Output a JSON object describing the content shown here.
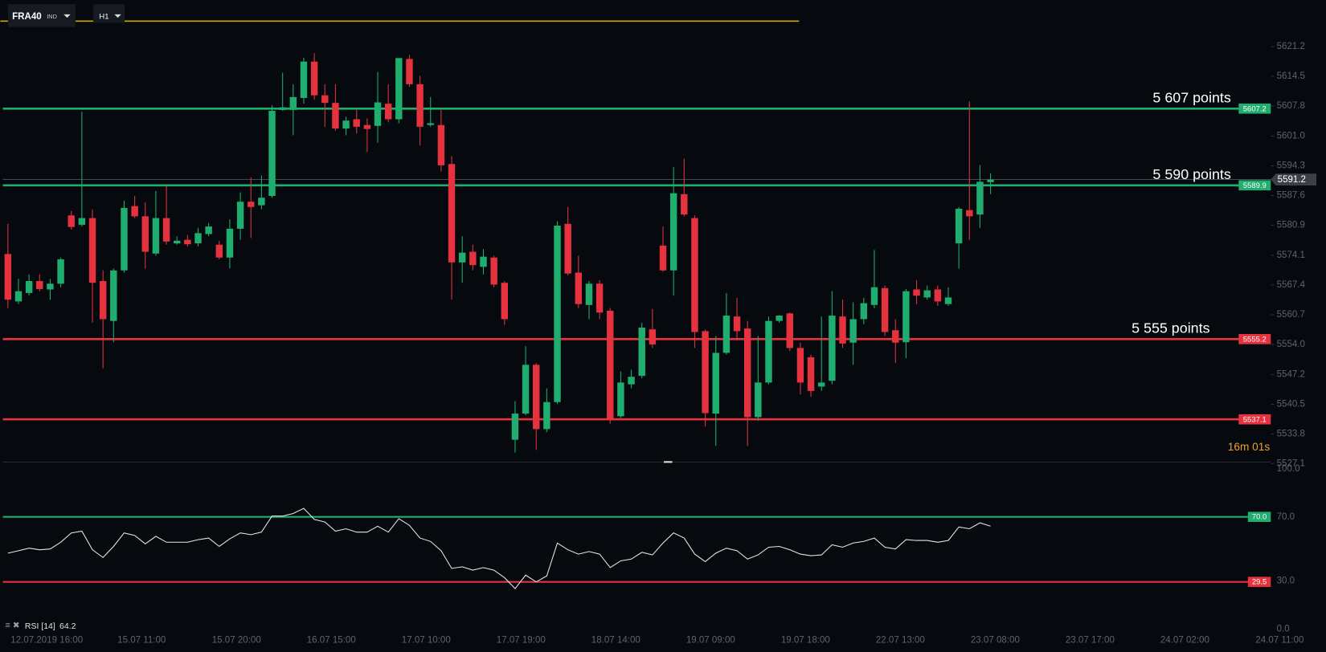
{
  "header": {
    "symbol": "FRA40",
    "market": "IND",
    "timeframe": "H1"
  },
  "chart_data": {
    "type": "candlestick",
    "up_color": "#1fae6f",
    "down_color": "#e5323e",
    "ylim": [
      5527.1,
      5631.7
    ],
    "yticks": [
      5621.2,
      5614.5,
      5607.8,
      {
        "value": 5601,
        "label": "5601.0"
      },
      5594.3,
      5587.6,
      5580.9,
      5574.1,
      5567.4,
      5560.7,
      {
        "value": 5554,
        "label": "5554.0"
      },
      5547.2,
      5540.5,
      5533.8,
      5527.1
    ],
    "open": [
      5574.4,
      5563.7,
      5565.6,
      5568.3,
      5566.4,
      5567.7,
      5583.1,
      5581.0,
      5582.5,
      5568.3,
      5559.3,
      5570.7,
      5585.2,
      5582.9,
      5574.5,
      5582.5,
      5576.8,
      5577.6,
      5576.8,
      5578.9,
      5576.5,
      5573.6,
      5580.1,
      5586.2,
      5585.4,
      5587.5,
      5606.9,
      5606.9,
      5609.6,
      5617.8,
      5610.2,
      5608.5,
      5602.7,
      5604.8,
      5603.5,
      5603.3,
      5608.3,
      5604.8,
      5618.4,
      5612.7,
      5603.5,
      5603.5,
      5594.7,
      5572.5,
      5574.9,
      5571.5,
      5573.6,
      5567.9,
      5532.5,
      5538.4,
      5549.4,
      5534.9,
      5541.0,
      5581.2,
      5570.2,
      5562.9,
      5567.7,
      5561.6,
      5537.8,
      5545.0,
      5546.9,
      5557.4,
      5576.3,
      5570.7,
      5587.9,
      5582.5,
      5557.0,
      5538.4,
      5552.1,
      5560.3,
      5557.6,
      5537.6,
      5545.4,
      5559.3,
      5561.0,
      5553.2,
      5551.1,
      5544.5,
      5545.8,
      5560.3,
      5554.4,
      5559.7,
      5562.9,
      5566.7,
      5557.2,
      5554.5,
      5566.4,
      5564.6,
      5566.4,
      5563.1,
      5576.8,
      5584.3,
      5583.3,
      5590.6
    ],
    "high": [
      5581.2,
      5568.8,
      5569.8,
      5569.8,
      5568.8,
      5573.6,
      5584.1,
      5606.5,
      5584.5,
      5570.7,
      5571.1,
      5586.4,
      5587.5,
      5586.0,
      5588.6,
      5589.8,
      5578.4,
      5578.7,
      5580.3,
      5581.4,
      5577.4,
      5582.2,
      5588.3,
      5591.7,
      5592.1,
      5607.9,
      5615.3,
      5612.7,
      5618.7,
      5619.7,
      5612.7,
      5612.7,
      5605.4,
      5606.9,
      5605.0,
      5615.5,
      5612.7,
      5618.6,
      5619.3,
      5614.6,
      5609.8,
      5606.9,
      5596.5,
      5578.4,
      5576.5,
      5575.5,
      5574.0,
      5568.3,
      5541.2,
      5553.6,
      5549.8,
      5544.1,
      5581.8,
      5585.0,
      5574.0,
      5568.3,
      5568.5,
      5562.2,
      5547.9,
      5548.3,
      5558.9,
      5562.0,
      5580.6,
      5594.0,
      5595.9,
      5583.1,
      5557.4,
      5555.9,
      5565.6,
      5564.5,
      5559.3,
      5555.9,
      5560.3,
      5560.6,
      5561.2,
      5554.4,
      5551.7,
      5560.3,
      5566.0,
      5564.1,
      5563.5,
      5564.5,
      5575.3,
      5567.3,
      5559.7,
      5566.5,
      5568.5,
      5567.3,
      5567.3,
      5566.9,
      5585.0,
      5608.8,
      5594.5,
      5592.6
    ],
    "low": [
      5562.2,
      5563.1,
      5565.0,
      5566.0,
      5564.1,
      5566.9,
      5579.9,
      5580.6,
      5558.9,
      5548.6,
      5554.5,
      5570.2,
      5582.5,
      5571.1,
      5574.0,
      5576.5,
      5576.5,
      5576.1,
      5576.1,
      5578.4,
      5573.2,
      5571.1,
      5577.6,
      5578.0,
      5584.5,
      5587.1,
      5606.7,
      5601.2,
      5608.3,
      5609.2,
      5603.1,
      5602.2,
      5601.2,
      5601.6,
      5597.4,
      5599.5,
      5604.1,
      5603.9,
      5612.1,
      5598.9,
      5603.1,
      5593.0,
      5564.1,
      5567.9,
      5570.7,
      5569.8,
      5566.9,
      5558.4,
      5529.6,
      5538.0,
      5530.2,
      5534.2,
      5540.6,
      5569.6,
      5562.2,
      5559.7,
      5559.7,
      5536.1,
      5537.4,
      5544.1,
      5546.4,
      5553.2,
      5570.4,
      5565.0,
      5582.9,
      5553.2,
      5535.5,
      5531.1,
      5551.7,
      5554.9,
      5531.1,
      5536.8,
      5545.0,
      5558.9,
      5552.5,
      5542.7,
      5542.2,
      5543.5,
      5545.0,
      5553.2,
      5549.4,
      5558.6,
      5562.2,
      5555.9,
      5549.8,
      5550.9,
      5563.1,
      5564.1,
      5562.7,
      5562.7,
      5571.1,
      5577.6,
      5580.3,
      5587.9
    ],
    "close": [
      5564.1,
      5566.0,
      5568.3,
      5566.5,
      5567.7,
      5573.2,
      5580.5,
      5582.5,
      5567.9,
      5559.7,
      5570.7,
      5584.8,
      5582.9,
      5574.9,
      5582.5,
      5577.2,
      5577.4,
      5576.6,
      5579.1,
      5580.6,
      5573.6,
      5580.1,
      5586.2,
      5585.0,
      5587.1,
      5606.7,
      5607.5,
      5609.8,
      5617.8,
      5610.2,
      5608.5,
      5602.7,
      5604.5,
      5603.1,
      5602.6,
      5608.6,
      5604.8,
      5618.6,
      5612.7,
      5603.1,
      5603.9,
      5594.4,
      5572.5,
      5574.7,
      5571.9,
      5573.8,
      5567.5,
      5559.7,
      5538.4,
      5549.4,
      5534.9,
      5541.0,
      5580.8,
      5570.0,
      5563.1,
      5567.7,
      5561.2,
      5537.2,
      5545.4,
      5546.7,
      5557.8,
      5554.0,
      5570.7,
      5588.1,
      5583.3,
      5556.8,
      5538.5,
      5552.1,
      5560.5,
      5557.0,
      5537.6,
      5545.4,
      5559.3,
      5560.5,
      5553.2,
      5545.4,
      5543.5,
      5545.4,
      5560.5,
      5554.2,
      5559.7,
      5563.3,
      5566.9,
      5556.8,
      5554.4,
      5566.0,
      5565.0,
      5566.2,
      5563.7,
      5564.6,
      5584.6,
      5582.9,
      5590.7,
      5591.2
    ],
    "levels": [
      {
        "value": 5607.2,
        "color": "#1fae6f",
        "annotation": "5 607 points"
      },
      {
        "value": 5589.9,
        "color": "#1fae6f",
        "annotation": "5 590 points"
      },
      {
        "value": 5555.2,
        "color": "#e5323e",
        "annotation": "5 555 points"
      },
      {
        "value": 5537.1,
        "color": "#e5323e"
      }
    ],
    "last_price": 5591.2,
    "timer": "16m 01s",
    "x_labels": [
      "12.07.2019 16:00",
      "15.07 11:00",
      "15.07 20:00",
      "16.07 15:00",
      "17.07 10:00",
      "17.07 19:00",
      "18.07 14:00",
      "19.07 09:00",
      "19.07 18:00",
      "22.07 13:00",
      "23.07 08:00",
      "23.07 17:00",
      "24.07 02:00",
      "24.07 11:00"
    ],
    "rsi": {
      "type": "line",
      "name": "RSI [14]",
      "color": "#e6e6e6",
      "ylim": [
        0,
        100
      ],
      "yticks": [
        {
          "value": 100,
          "label": "100.0"
        },
        {
          "value": 70,
          "label": "70.0"
        },
        {
          "value": 30,
          "label": "30.0"
        },
        {
          "value": 0,
          "label": "0.0"
        }
      ],
      "levels": [
        {
          "value": 70,
          "label": "70.0",
          "color": "#1fae6f"
        },
        {
          "value": 29.5,
          "color": "#e5323e"
        }
      ],
      "values": [
        47.4,
        48.9,
        50.5,
        49.5,
        50.0,
        54.2,
        60.0,
        61.1,
        49.5,
        44.7,
        51.6,
        60.0,
        58.4,
        53.2,
        57.9,
        54.2,
        54.2,
        54.2,
        55.8,
        56.8,
        51.6,
        56.3,
        60.0,
        58.9,
        60.5,
        70.5,
        70.5,
        72.1,
        75.3,
        68.4,
        66.8,
        61.1,
        62.6,
        60.5,
        60.5,
        64.2,
        60.5,
        68.9,
        64.7,
        56.8,
        54.7,
        48.9,
        37.9,
        38.9,
        36.8,
        38.4,
        36.8,
        32.1,
        25.3,
        33.7,
        29.5,
        33.2,
        53.7,
        49.5,
        46.8,
        48.4,
        46.8,
        38.4,
        42.6,
        43.7,
        47.9,
        46.3,
        53.7,
        60.0,
        56.8,
        46.8,
        42.1,
        47.4,
        50.5,
        48.9,
        43.7,
        46.3,
        51.1,
        51.6,
        49.5,
        46.8,
        45.8,
        46.3,
        52.6,
        51.1,
        53.7,
        54.7,
        56.8,
        51.1,
        50.0,
        55.8,
        55.3,
        55.3,
        54.2,
        55.3,
        63.7,
        62.6,
        66.3,
        64.2
      ]
    }
  }
}
